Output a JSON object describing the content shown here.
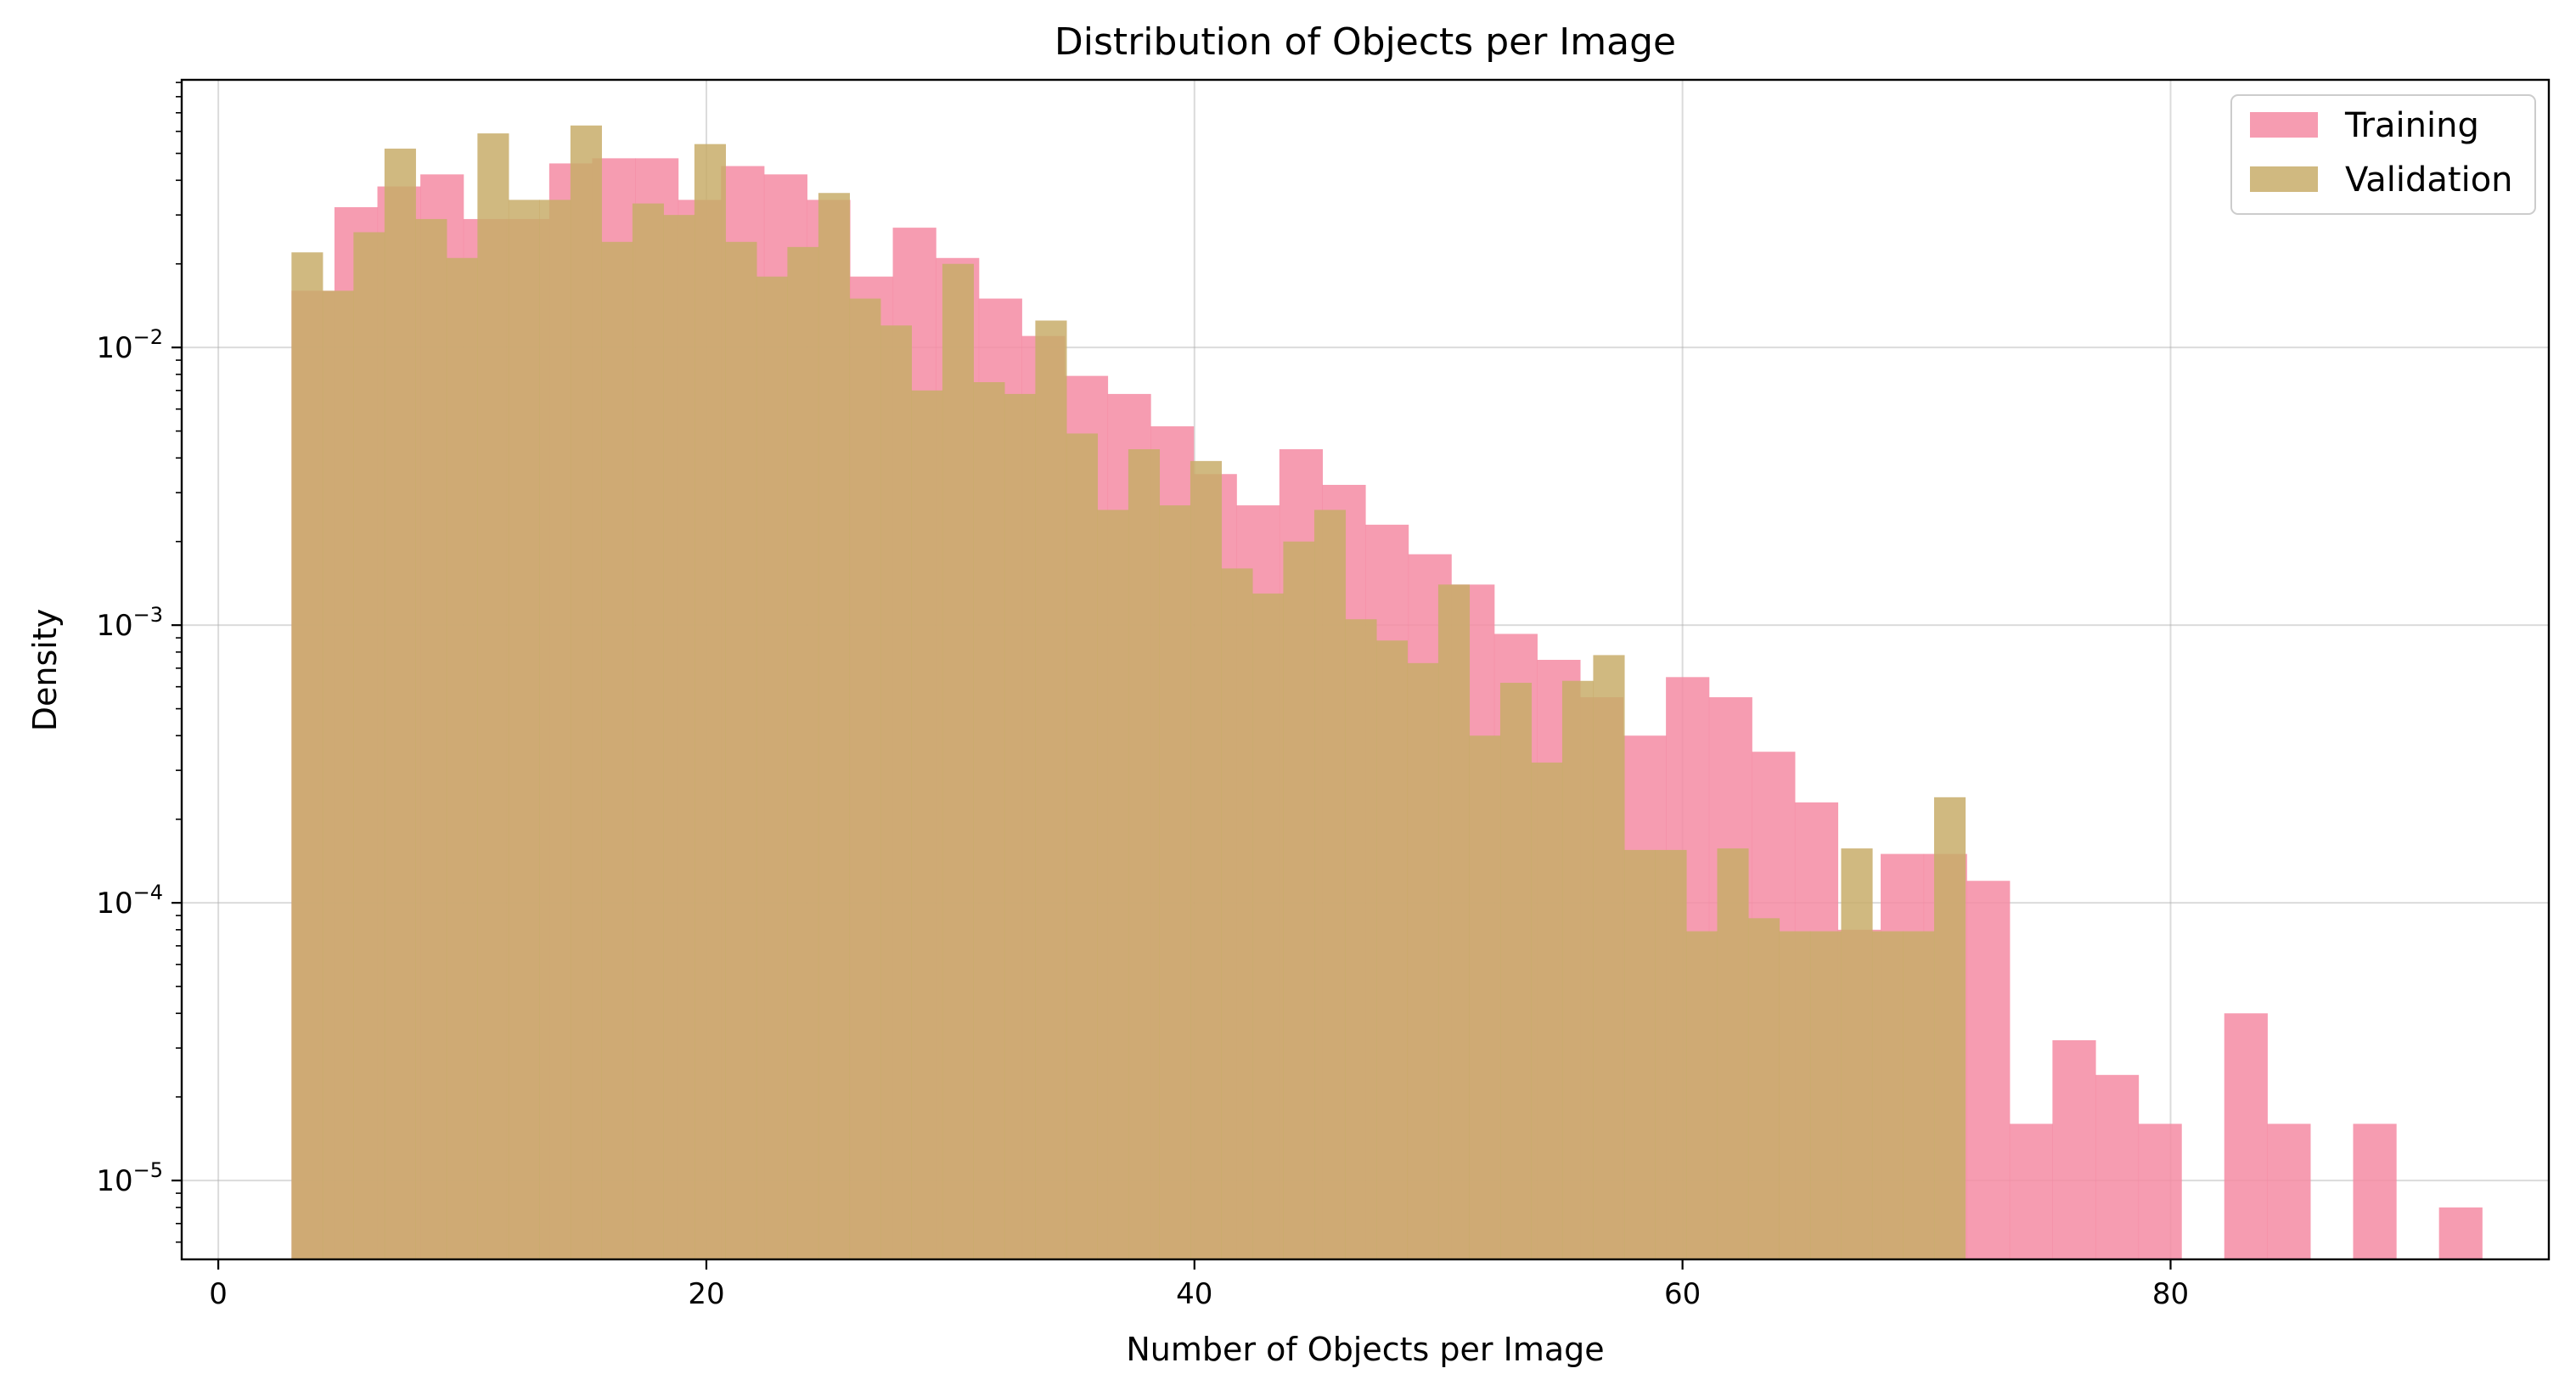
{
  "chart_data": {
    "type": "bar",
    "title": "Distribution of Objects per Image",
    "xlabel": "Number of Objects per Image",
    "ylabel": "Density",
    "x_ticks": [
      0,
      20,
      40,
      60,
      80
    ],
    "x_tick_labels": [
      "0",
      "20",
      "40",
      "60",
      "80"
    ],
    "xlim": [
      -1.5,
      95.5
    ],
    "y_scale": "log",
    "ylim": [
      5.2e-06,
      0.092
    ],
    "y_ticks": [
      1e-05,
      0.0001,
      0.001,
      0.01
    ],
    "y_tick_labels": [
      {
        "base": "10",
        "exp": "−5"
      },
      {
        "base": "10",
        "exp": "−4"
      },
      {
        "base": "10",
        "exp": "−3"
      },
      {
        "base": "10",
        "exp": "−2"
      }
    ],
    "grid": true,
    "legend_position": "top-right",
    "series": [
      {
        "name": "Training",
        "color": "#f48ba3",
        "bin_width": 1.76,
        "x_start": 3.0,
        "values": [
          0.016,
          0.032,
          0.038,
          0.042,
          0.029,
          0.029,
          0.046,
          0.048,
          0.048,
          0.034,
          0.045,
          0.042,
          0.034,
          0.018,
          0.027,
          0.021,
          0.015,
          0.011,
          0.0079,
          0.0068,
          0.0052,
          0.0035,
          0.0027,
          0.0043,
          0.0032,
          0.0023,
          0.0018,
          0.0014,
          0.00093,
          0.00075,
          0.00055,
          0.0004,
          0.00065,
          0.00055,
          0.00035,
          0.00023,
          8e-05,
          0.00015,
          0.00015,
          0.00012,
          1.6e-05,
          3.2e-05,
          2.4e-05,
          1.6e-05,
          null,
          4e-05,
          1.6e-05,
          null,
          1.6e-05,
          null,
          8e-06
        ]
      },
      {
        "name": "Validation",
        "color": "#c8ad6a",
        "bin_width": 1.27,
        "x_start": 3.0,
        "values": [
          0.022,
          0.016,
          0.026,
          0.052,
          0.029,
          0.021,
          0.059,
          0.034,
          0.034,
          0.063,
          0.024,
          0.033,
          0.03,
          0.054,
          0.024,
          0.018,
          0.023,
          0.036,
          0.015,
          0.012,
          0.007,
          0.02,
          0.0075,
          0.0068,
          0.0125,
          0.0049,
          0.0026,
          0.0043,
          0.0027,
          0.0039,
          0.0016,
          0.0013,
          0.002,
          0.0026,
          0.00105,
          0.00088,
          0.00073,
          0.0014,
          0.0004,
          0.00062,
          0.00032,
          0.00063,
          0.00078,
          0.000155,
          0.000155,
          7.9e-05,
          0.000157,
          8.8e-05,
          7.9e-05,
          7.9e-05,
          0.000157,
          7.9e-05,
          7.9e-05,
          0.00024
        ]
      }
    ]
  }
}
